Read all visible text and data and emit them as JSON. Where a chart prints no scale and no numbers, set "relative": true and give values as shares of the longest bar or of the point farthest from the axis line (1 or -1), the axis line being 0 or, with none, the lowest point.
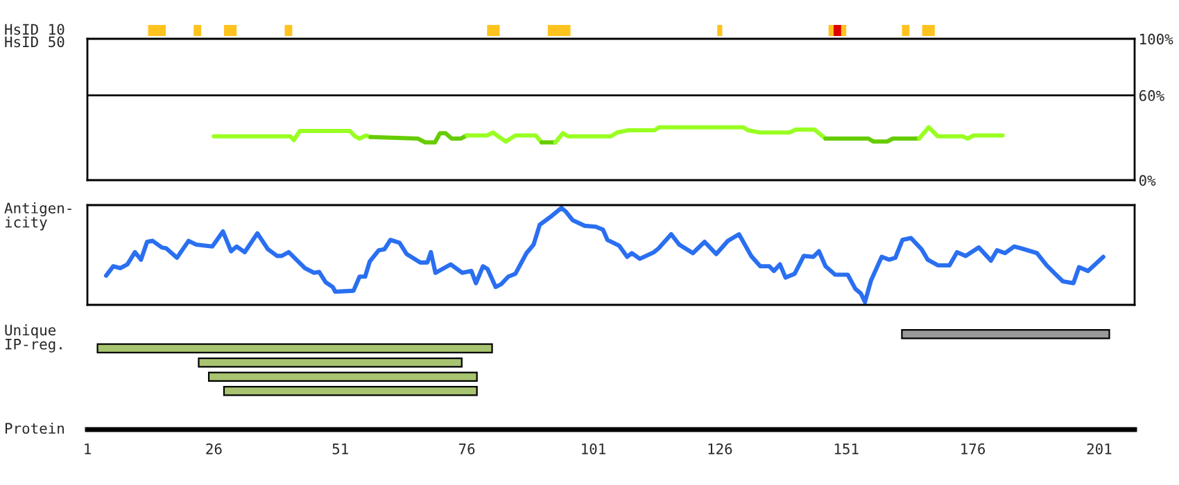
{
  "chart_data": [
    {
      "type": "bar",
      "orientation": "horizontal",
      "ylabel": "HsID 10",
      "categories": [
        null
      ],
      "xlim": [
        1,
        208
      ],
      "tick_labels": false,
      "series": [
        {
          "color": "#ffc31f",
          "base": [
            13
          ],
          "values": [
            3.5
          ]
        },
        {
          "color": "#ffc31f",
          "base": [
            22
          ],
          "values": [
            1.5
          ]
        },
        {
          "color": "#ffc31f",
          "base": [
            28
          ],
          "values": [
            2.5
          ]
        },
        {
          "color": "#ffc31f",
          "base": [
            40
          ],
          "values": [
            1.5
          ]
        },
        {
          "color": "#ffc31f",
          "base": [
            80
          ],
          "values": [
            2.5
          ]
        },
        {
          "color": "#ffc31f",
          "base": [
            92
          ],
          "values": [
            4.5
          ]
        },
        {
          "color": "#ffc31f",
          "base": [
            125.5
          ],
          "values": [
            1
          ]
        },
        {
          "color": "#ffc31f",
          "base": [
            147.5
          ],
          "values": [
            1
          ]
        },
        {
          "color": "#e00000",
          "base": [
            148.5
          ],
          "values": [
            1.5
          ]
        },
        {
          "color": "#ffc31f",
          "base": [
            150
          ],
          "values": [
            1
          ]
        },
        {
          "color": "#ffc31f",
          "base": [
            162
          ],
          "values": [
            1.5
          ]
        },
        {
          "color": "#ffc31f",
          "base": [
            166
          ],
          "values": [
            2.5
          ]
        }
      ]
    },
    {
      "type": "line",
      "ylabel": "HsID 50",
      "xlim": [
        1,
        208
      ],
      "ylim": [
        0,
        100
      ],
      "yticks": [
        {
          "value": 0,
          "label": "0%"
        },
        {
          "value": 60,
          "label": "60%"
        },
        {
          "value": 100,
          "label": "100%"
        }
      ],
      "tick_labels": "y",
      "ref_lines": [
        {
          "axis": "y",
          "value": 60,
          "color": "#000000"
        }
      ],
      "series": [
        {
          "color": "#99ff22",
          "x": [
            26.0,
            41.1,
            41.8,
            43.0,
            52.9,
            53.9,
            54.8,
            56.1,
            57.0
          ],
          "values": [
            31.0,
            31.0,
            28.3,
            34.8,
            34.8,
            31.0,
            29.4,
            31.6,
            30.5
          ]
        },
        {
          "color": "#66cc00",
          "x": [
            57.0,
            66.3,
            67.8,
            69.7,
            70.7,
            71.8,
            73.0,
            74.8,
            76.0
          ],
          "values": [
            30.5,
            29.4,
            26.7,
            26.7,
            33.2,
            33.2,
            29.4,
            29.4,
            31.6
          ]
        },
        {
          "color": "#99ff22",
          "x": [
            76.0,
            80.0,
            81.2,
            82.2,
            83.7,
            85.6,
            89.6,
            90.8
          ],
          "values": [
            31.6,
            31.6,
            33.7,
            31.0,
            27.3,
            31.6,
            31.6,
            26.7
          ]
        },
        {
          "color": "#66cc00",
          "x": [
            90.8,
            93.5
          ],
          "values": [
            26.7,
            26.7
          ]
        },
        {
          "color": "#99ff22",
          "x": [
            93.5,
            95.0,
            96.0,
            104.5,
            105.7,
            107.9,
            113.1,
            114.0,
            130.6,
            131.6,
            133.9,
            139.8,
            141.0,
            144.7,
            146.9
          ],
          "values": [
            26.7,
            33.2,
            31.0,
            31.0,
            33.7,
            35.3,
            35.3,
            37.4,
            37.4,
            35.3,
            33.7,
            33.7,
            35.8,
            35.8,
            29.4
          ]
        },
        {
          "color": "#66cc00",
          "x": [
            146.9,
            155.4,
            156.4,
            159.1,
            160.2,
            165.4
          ],
          "values": [
            29.4,
            29.4,
            27.3,
            27.3,
            29.4,
            29.4
          ]
        },
        {
          "color": "#99ff22",
          "x": [
            165.4,
            167.3,
            169.1,
            174.0,
            175.0,
            176.2,
            181.9
          ],
          "values": [
            29.4,
            37.4,
            31.0,
            31.0,
            29.4,
            31.6,
            31.6
          ]
        }
      ]
    },
    {
      "type": "line",
      "ylabel": "Antigen-\nicity",
      "relative": true,
      "xlim": [
        1,
        208
      ],
      "tick_labels": false,
      "series": [
        {
          "color": "#2a6ff0",
          "x": [
            4.7,
            6.1,
            7.5,
            8.9,
            10.4,
            11.6,
            12.8,
            13.9,
            15.7,
            16.6,
            18.7,
            21.0,
            22.5,
            25.7,
            27.8,
            29.4,
            30.5,
            32.1,
            34.6,
            36.7,
            38.5,
            39.4,
            40.8,
            44.0,
            45.8,
            46.8,
            48.1,
            49.5,
            50.0,
            53.6,
            54.8,
            55.9,
            56.8,
            58.6,
            59.7,
            60.9,
            62.7,
            64.1,
            66.8,
            68.2,
            68.9,
            69.8,
            72.8,
            75.1,
            76.9,
            77.8,
            79.2,
            80.1,
            81.7,
            82.8,
            84.2,
            85.6,
            87.8,
            89.2,
            90.4,
            92.9,
            94.7,
            95.6,
            96.9,
            99.3,
            101.5,
            102.9,
            103.8,
            106.1,
            107.7,
            108.6,
            110.2,
            113.0,
            113.9,
            116.4,
            118.0,
            120.7,
            123.0,
            125.3,
            127.6,
            129.8,
            132.2,
            134.0,
            135.8,
            136.7,
            137.9,
            139.0,
            140.8,
            142.6,
            144.5,
            145.6,
            146.9,
            148.8,
            151.3,
            152.8,
            153.9,
            154.7,
            155.9,
            158.0,
            159.5,
            160.7,
            162.1,
            163.8,
            165.9,
            167.1,
            169.1,
            171.4,
            172.9,
            174.6,
            177.2,
            179.6,
            180.8,
            182.4,
            184.2,
            185.6,
            188.7,
            190.6,
            193.8,
            195.9,
            197.0,
            198.8,
            201.8
          ],
          "values": [
            0.28,
            0.38,
            0.36,
            0.4,
            0.53,
            0.45,
            0.64,
            0.65,
            0.58,
            0.57,
            0.47,
            0.65,
            0.61,
            0.59,
            0.75,
            0.54,
            0.59,
            0.53,
            0.73,
            0.56,
            0.49,
            0.49,
            0.53,
            0.36,
            0.31,
            0.32,
            0.21,
            0.16,
            0.11,
            0.12,
            0.27,
            0.27,
            0.43,
            0.55,
            0.56,
            0.66,
            0.63,
            0.51,
            0.42,
            0.42,
            0.53,
            0.31,
            0.4,
            0.31,
            0.33,
            0.2,
            0.38,
            0.35,
            0.16,
            0.19,
            0.27,
            0.3,
            0.52,
            0.61,
            0.82,
            0.92,
            1.0,
            0.96,
            0.87,
            0.81,
            0.8,
            0.77,
            0.66,
            0.6,
            0.48,
            0.52,
            0.46,
            0.53,
            0.57,
            0.72,
            0.61,
            0.52,
            0.64,
            0.51,
            0.65,
            0.72,
            0.49,
            0.38,
            0.38,
            0.33,
            0.4,
            0.26,
            0.3,
            0.49,
            0.48,
            0.54,
            0.38,
            0.29,
            0.29,
            0.14,
            0.09,
            0.0,
            0.23,
            0.48,
            0.45,
            0.47,
            0.66,
            0.68,
            0.56,
            0.45,
            0.39,
            0.39,
            0.53,
            0.49,
            0.58,
            0.44,
            0.55,
            0.52,
            0.59,
            0.57,
            0.52,
            0.39,
            0.22,
            0.2,
            0.37,
            0.33,
            0.48
          ]
        }
      ]
    },
    {
      "type": "bar",
      "orientation": "horizontal",
      "ylabel": "Unique\nIP-reg.",
      "xlabel": "Protein",
      "categories": [
        null,
        null,
        null,
        null,
        null
      ],
      "base": [
        162,
        3,
        23,
        25,
        28
      ],
      "values": [
        41,
        78,
        52,
        53,
        50
      ],
      "colors": [
        "#999999",
        "#a8c470",
        "#a8c470",
        "#a8c470",
        "#a8c470"
      ],
      "xlim": [
        1,
        208
      ],
      "xticks": [
        1,
        26,
        51,
        76,
        101,
        126,
        151,
        176,
        201
      ],
      "tick_labels": "x"
    }
  ]
}
